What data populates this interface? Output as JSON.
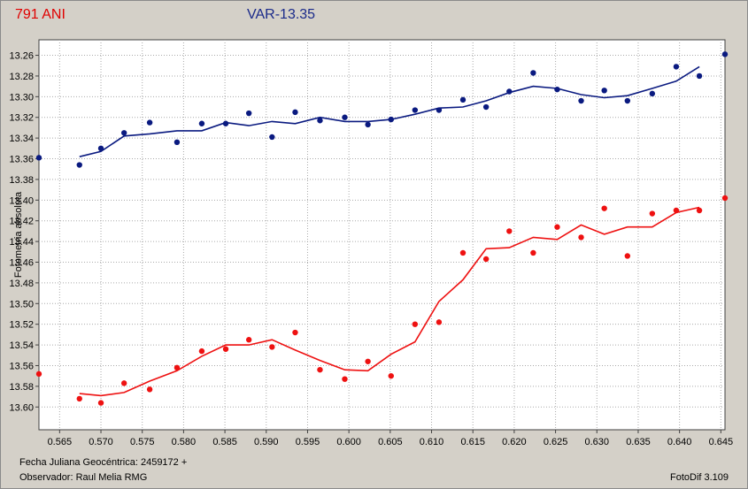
{
  "header": {
    "object_label": "791 ANI",
    "variable_label": "VAR-13.35"
  },
  "footer": {
    "julian_date": "Fecha Juliana Geocéntrica: 2459172 +",
    "observer": "Observador: Raul Melia RMG",
    "software": "FotoDif 3.109"
  },
  "colors": {
    "series_blue": "#0a1a80",
    "series_red": "#ee1111",
    "background": "#d4d0c8",
    "grid": "#aaaaaa"
  },
  "chart_data": {
    "type": "scatter",
    "xlabel": "",
    "ylabel": "Fotometria absoluta",
    "xlim": [
      0.5625,
      0.6455
    ],
    "ylim": [
      13.245,
      13.622
    ],
    "y_inverted": true,
    "grid": true,
    "x_ticks": [
      "0.565",
      "0.570",
      "0.575",
      "0.580",
      "0.585",
      "0.590",
      "0.595",
      "0.600",
      "0.605",
      "0.610",
      "0.615",
      "0.620",
      "0.625",
      "0.630",
      "0.635",
      "0.640",
      "0.645"
    ],
    "y_ticks": [
      "13.26",
      "13.28",
      "13.30",
      "13.32",
      "13.34",
      "13.36",
      "13.38",
      "13.40",
      "13.42",
      "13.44",
      "13.46",
      "13.48",
      "13.50",
      "13.52",
      "13.54",
      "13.56",
      "13.58",
      "13.60"
    ],
    "series": [
      {
        "color": "#0a1a80",
        "points": [
          [
            0.5625,
            13.359
          ],
          [
            0.5674,
            13.366
          ],
          [
            0.57,
            13.35
          ],
          [
            0.5728,
            13.335
          ],
          [
            0.5759,
            13.325
          ],
          [
            0.5792,
            13.344
          ],
          [
            0.5822,
            13.326
          ],
          [
            0.5851,
            13.326
          ],
          [
            0.5879,
            13.316
          ],
          [
            0.5907,
            13.339
          ],
          [
            0.5935,
            13.315
          ],
          [
            0.5965,
            13.323
          ],
          [
            0.5995,
            13.32
          ],
          [
            0.6023,
            13.327
          ],
          [
            0.6051,
            13.322
          ],
          [
            0.608,
            13.313
          ],
          [
            0.6109,
            13.313
          ],
          [
            0.6138,
            13.303
          ],
          [
            0.6166,
            13.31
          ],
          [
            0.6194,
            13.295
          ],
          [
            0.6223,
            13.277
          ],
          [
            0.6252,
            13.293
          ],
          [
            0.6281,
            13.304
          ],
          [
            0.6309,
            13.294
          ],
          [
            0.6337,
            13.304
          ],
          [
            0.6367,
            13.297
          ],
          [
            0.6396,
            13.271
          ],
          [
            0.6424,
            13.28
          ],
          [
            0.6455,
            13.259
          ]
        ],
        "trend": [
          [
            0.5674,
            13.358
          ],
          [
            0.57,
            13.353
          ],
          [
            0.5728,
            13.338
          ],
          [
            0.5759,
            13.336
          ],
          [
            0.5792,
            13.333
          ],
          [
            0.5822,
            13.333
          ],
          [
            0.5851,
            13.325
          ],
          [
            0.5879,
            13.328
          ],
          [
            0.5907,
            13.324
          ],
          [
            0.5935,
            13.326
          ],
          [
            0.5965,
            13.32
          ],
          [
            0.5995,
            13.324
          ],
          [
            0.6023,
            13.324
          ],
          [
            0.6051,
            13.322
          ],
          [
            0.608,
            13.317
          ],
          [
            0.6109,
            13.311
          ],
          [
            0.6138,
            13.31
          ],
          [
            0.6166,
            13.304
          ],
          [
            0.6194,
            13.296
          ],
          [
            0.6223,
            13.29
          ],
          [
            0.6252,
            13.292
          ],
          [
            0.6281,
            13.298
          ],
          [
            0.6309,
            13.301
          ],
          [
            0.6337,
            13.299
          ],
          [
            0.6367,
            13.292
          ],
          [
            0.6396,
            13.285
          ],
          [
            0.6424,
            13.271
          ]
        ]
      },
      {
        "color": "#ee1111",
        "points": [
          [
            0.5625,
            13.568
          ],
          [
            0.5674,
            13.592
          ],
          [
            0.57,
            13.596
          ],
          [
            0.5728,
            13.577
          ],
          [
            0.5759,
            13.583
          ],
          [
            0.5792,
            13.562
          ],
          [
            0.5822,
            13.546
          ],
          [
            0.5851,
            13.544
          ],
          [
            0.5879,
            13.535
          ],
          [
            0.5907,
            13.542
          ],
          [
            0.5935,
            13.528
          ],
          [
            0.5965,
            13.564
          ],
          [
            0.5995,
            13.573
          ],
          [
            0.6023,
            13.556
          ],
          [
            0.6051,
            13.57
          ],
          [
            0.608,
            13.52
          ],
          [
            0.6109,
            13.518
          ],
          [
            0.6138,
            13.451
          ],
          [
            0.6166,
            13.457
          ],
          [
            0.6194,
            13.43
          ],
          [
            0.6223,
            13.451
          ],
          [
            0.6252,
            13.426
          ],
          [
            0.6281,
            13.436
          ],
          [
            0.6309,
            13.408
          ],
          [
            0.6337,
            13.454
          ],
          [
            0.6367,
            13.413
          ],
          [
            0.6396,
            13.41
          ],
          [
            0.6424,
            13.41
          ],
          [
            0.6455,
            13.398
          ]
        ],
        "trend": [
          [
            0.5674,
            13.587
          ],
          [
            0.57,
            13.589
          ],
          [
            0.5728,
            13.586
          ],
          [
            0.5759,
            13.575
          ],
          [
            0.5792,
            13.565
          ],
          [
            0.5822,
            13.551
          ],
          [
            0.5851,
            13.54
          ],
          [
            0.5879,
            13.54
          ],
          [
            0.5907,
            13.535
          ],
          [
            0.5935,
            13.545
          ],
          [
            0.5965,
            13.555
          ],
          [
            0.5995,
            13.564
          ],
          [
            0.6023,
            13.565
          ],
          [
            0.6051,
            13.549
          ],
          [
            0.608,
            13.537
          ],
          [
            0.6109,
            13.498
          ],
          [
            0.6138,
            13.477
          ],
          [
            0.6166,
            13.447
          ],
          [
            0.6194,
            13.446
          ],
          [
            0.6223,
            13.436
          ],
          [
            0.6252,
            13.438
          ],
          [
            0.6281,
            13.424
          ],
          [
            0.6309,
            13.433
          ],
          [
            0.6337,
            13.426
          ],
          [
            0.6367,
            13.426
          ],
          [
            0.6396,
            13.412
          ],
          [
            0.6424,
            13.407
          ]
        ]
      }
    ]
  }
}
